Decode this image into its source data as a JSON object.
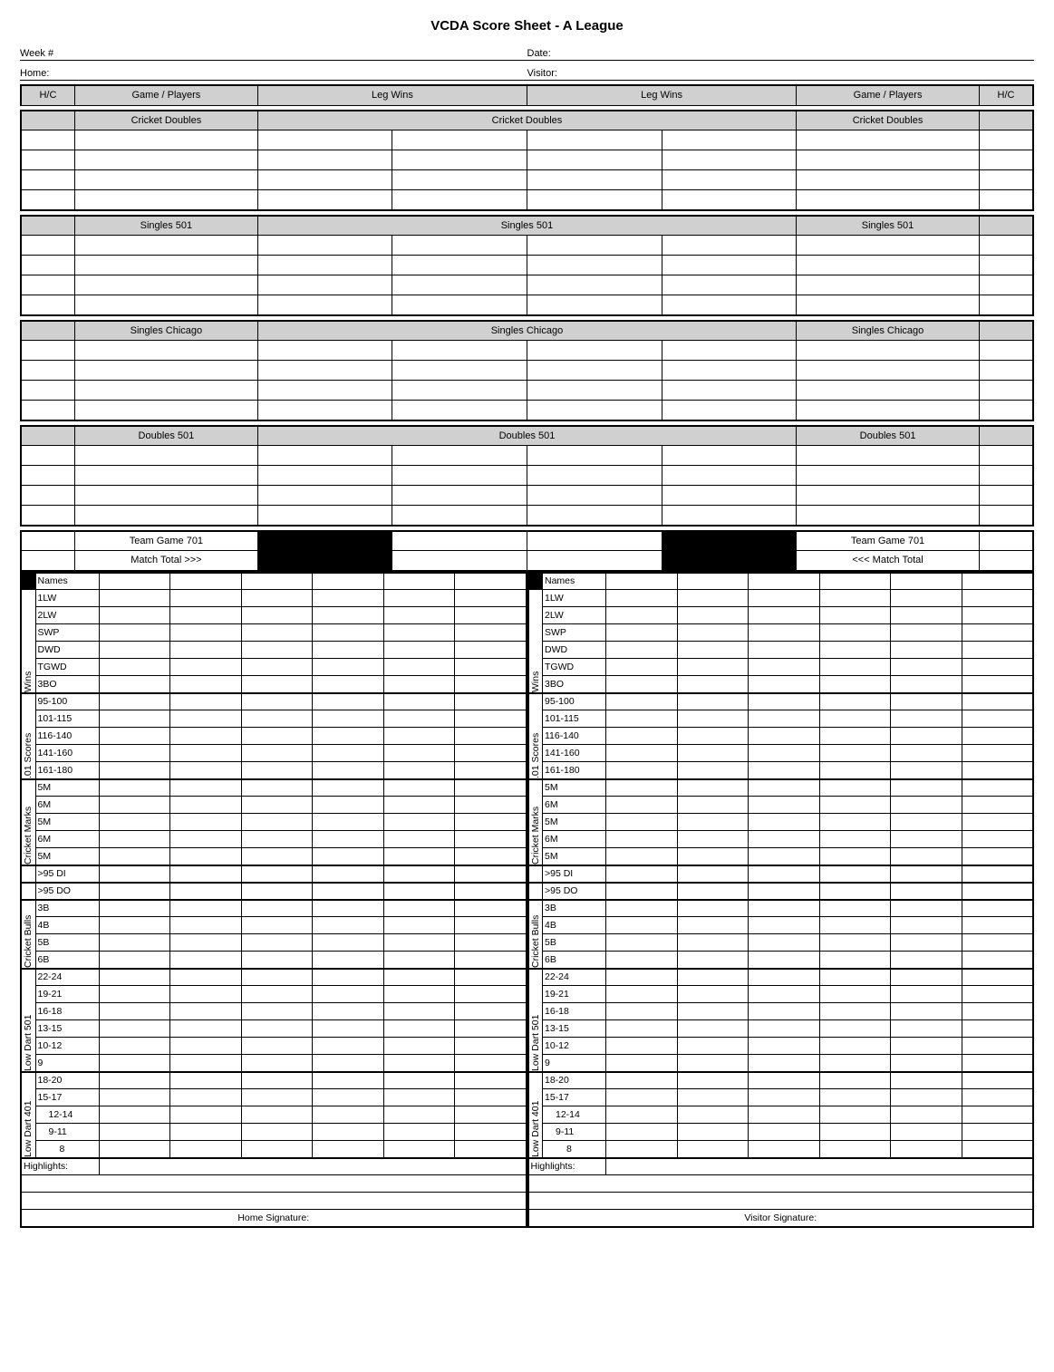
{
  "title": "VCDA Score Sheet - A League",
  "info": {
    "week_label": "Week #",
    "date_label": "Date:",
    "home_label": "Home:",
    "visitor_label": "Visitor:"
  },
  "top_headers": {
    "hc": "H/C",
    "game_players": "Game / Players",
    "leg_wins": "Leg Wins"
  },
  "games": {
    "g1": "Cricket Doubles",
    "g2": "Singles 501",
    "g3": "Singles Chicago",
    "g4": "Doubles 501",
    "g5": "Team Game 701",
    "match_total_r": "Match Total >>>",
    "match_total_l": "<<< Match Total"
  },
  "stats": {
    "names": "Names",
    "wins_cat": "Wins",
    "wins": [
      "1LW",
      "2LW",
      "SWP",
      "DWD",
      "TGWD",
      "3BO"
    ],
    "scores_cat": ".01 Scores",
    "scores": [
      "95-100",
      "101-115",
      "116-140",
      "141-160",
      "161-180"
    ],
    "cmarks_cat": "Cricket Marks",
    "cmarks": [
      "5M",
      "6M",
      "5M",
      "6M",
      "5M"
    ],
    "di": ">95 DI",
    "do": ">95 DO",
    "cbulls_cat": "Cricket Bulls",
    "cbulls": [
      "3B",
      "4B",
      "5B",
      "6B"
    ],
    "ld501_cat": "Low Dart 501",
    "ld501": [
      "22-24",
      "19-21",
      "16-18",
      "13-15",
      "10-12",
      "9"
    ],
    "ld401_cat": "Low Dart 401",
    "ld401": [
      "18-20",
      "15-17",
      "12-14",
      "9-11",
      "8"
    ],
    "highlights": "Highlights:",
    "home_sig": "Home Signature:",
    "visitor_sig": "Visitor Signature:"
  },
  "colors": {
    "grey": "#d0d0d0",
    "black": "#000000",
    "white": "#ffffff"
  },
  "col_widths": {
    "hc": 50,
    "gp": 170,
    "leg": 125,
    "vcat": 16,
    "rowlbl": 52,
    "statcol": 60
  }
}
